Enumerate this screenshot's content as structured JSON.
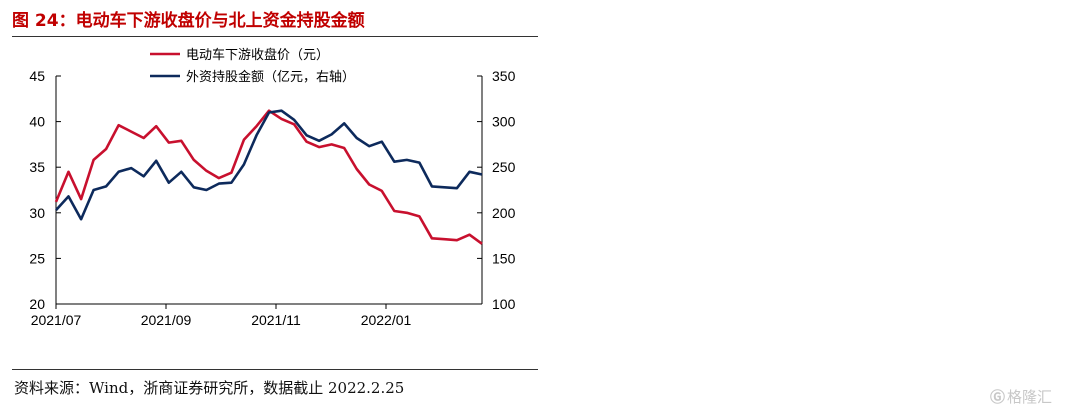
{
  "figure": {
    "title": "图 24：电动车下游收盘价与北上资金持股金额",
    "source": "资料来源：Wind，浙商证券研究所，数据截止 2022.2.25",
    "watermark": "格隆汇"
  },
  "colors": {
    "title": "#c00000",
    "series_price": "#c8102e",
    "series_holding": "#0d2a5c",
    "axis": "#000000"
  },
  "icons": {
    "watermark": "glh-logo-icon"
  },
  "chart_data": {
    "type": "line",
    "x_ticks": [
      "2021/07",
      "2021/09",
      "2021/11",
      "2022/01"
    ],
    "y_left": {
      "range": [
        20,
        45
      ],
      "ticks": [
        20,
        25,
        30,
        35,
        40,
        45
      ]
    },
    "y_right": {
      "range": [
        100,
        350
      ],
      "ticks": [
        100,
        150,
        200,
        250,
        300,
        350
      ]
    },
    "legend": "top-center",
    "grid": false,
    "series": [
      {
        "name": "电动车下游收盘价（元）",
        "axis": "left",
        "values": [
          31.2,
          34.5,
          31.5,
          35.8,
          37.0,
          39.6,
          38.9,
          38.2,
          39.5,
          37.7,
          37.9,
          35.8,
          34.6,
          33.8,
          34.4,
          38.0,
          39.5,
          41.2,
          40.3,
          39.7,
          37.8,
          37.2,
          37.5,
          37.1,
          34.8,
          33.1,
          32.4,
          30.2,
          30.0,
          29.6,
          27.2,
          27.1,
          27.0,
          27.6,
          26.6
        ]
      },
      {
        "name": "外资持股金额（亿元，右轴）",
        "axis": "right",
        "values": [
          203,
          218,
          193,
          225,
          229,
          245,
          249,
          240,
          257,
          233,
          245,
          228,
          225,
          232,
          233,
          253,
          285,
          310,
          312,
          302,
          285,
          279,
          286,
          298,
          282,
          273,
          278,
          256,
          258,
          255,
          229,
          228,
          227,
          245,
          242
        ]
      }
    ]
  }
}
